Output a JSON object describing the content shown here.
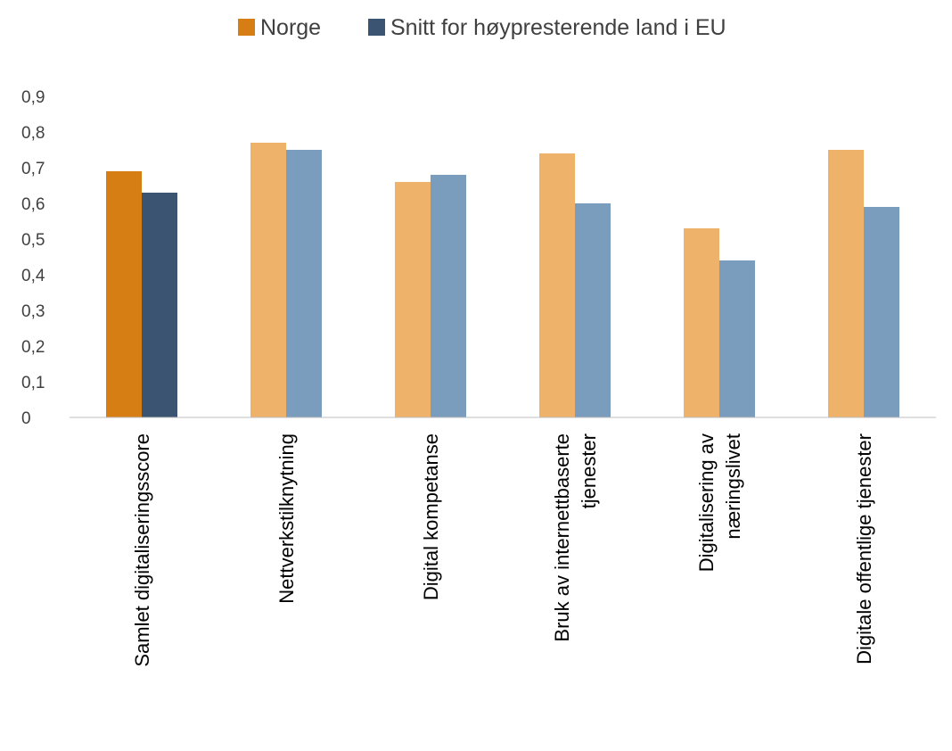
{
  "chart_data": {
    "type": "bar",
    "title": "",
    "xlabel": "",
    "ylabel": "",
    "ylim": [
      0,
      0.9
    ],
    "yticks": [
      "0",
      "0,1",
      "0,2",
      "0,3",
      "0,4",
      "0,5",
      "0,6",
      "0,7",
      "0,8",
      "0,9"
    ],
    "grid": false,
    "legend_position": "top",
    "categories": [
      [
        "Samlet digitaliseringsscore"
      ],
      [
        "Nettverkstilknytning"
      ],
      [
        "Digital kompetanse"
      ],
      [
        "Bruk av internettbaserte",
        "tjenester"
      ],
      [
        "Digitalisering av",
        "næringslivet"
      ],
      [
        "Digitale offentlige tjenester"
      ]
    ],
    "series": [
      {
        "name": "Norge",
        "values": [
          0.69,
          0.77,
          0.66,
          0.74,
          0.53,
          0.75
        ],
        "color": "#D67D14",
        "light_color": "#EFB26A"
      },
      {
        "name": "Snitt for høypresterende land i EU",
        "values": [
          0.63,
          0.75,
          0.68,
          0.6,
          0.44,
          0.59
        ],
        "color": "#3A5472",
        "light_color": "#7A9CBD"
      }
    ]
  }
}
